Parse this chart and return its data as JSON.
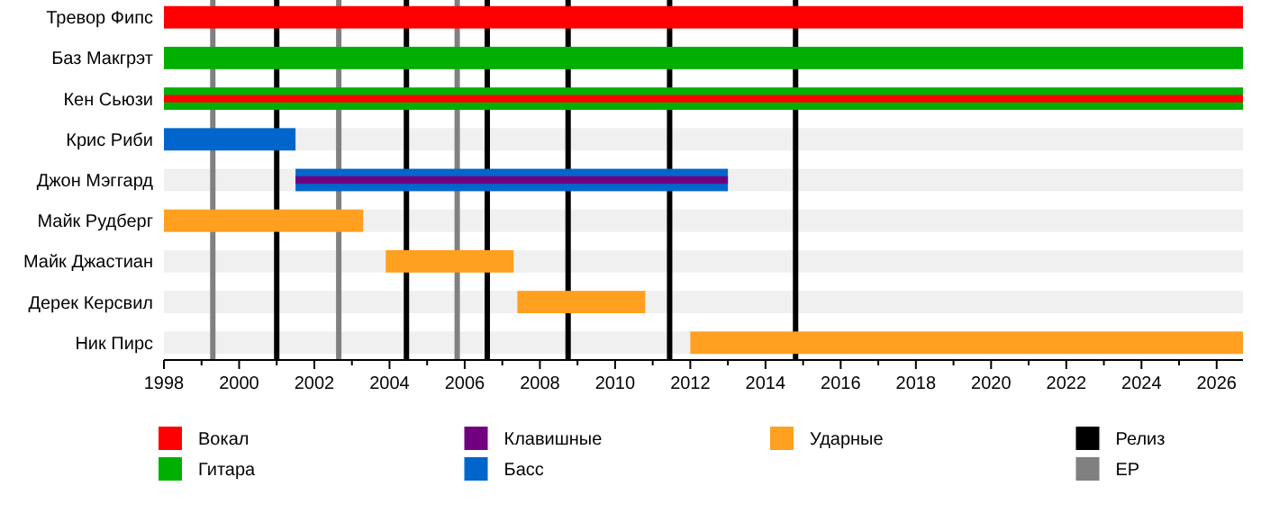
{
  "chart_data": {
    "type": "bar",
    "orientation": "horizontal",
    "categories": [
      "Тревор Фипс",
      "Баз Макгрэт",
      "Кен Сьюзи",
      "Крис Риби",
      "Джон Мэггард",
      "Майк Рудберг",
      "Майк Джастиан",
      "Дерек Керсвил",
      "Ник Пирс"
    ],
    "series": [
      {
        "name": "Вокал",
        "color": "#ff0000",
        "base": [
          1998,
          null,
          1998,
          null,
          null,
          null,
          null,
          null,
          null
        ],
        "values": [
          28.7,
          null,
          28.7,
          null,
          null,
          null,
          null,
          null,
          null
        ]
      },
      {
        "name": "Гитара",
        "color": "#00b000",
        "base": [
          null,
          1998,
          1998,
          null,
          null,
          null,
          null,
          null,
          null
        ],
        "values": [
          null,
          28.7,
          28.7,
          null,
          null,
          null,
          null,
          null,
          null
        ]
      },
      {
        "name": "Клавишные",
        "color": "#700080",
        "base": [
          null,
          null,
          null,
          null,
          2001.5,
          null,
          null,
          null,
          null
        ],
        "values": [
          null,
          null,
          null,
          null,
          11.5,
          null,
          null,
          null,
          null
        ]
      },
      {
        "name": "Басс",
        "color": "#0066cc",
        "base": [
          null,
          null,
          null,
          1998,
          2001.5,
          null,
          null,
          null,
          null
        ],
        "values": [
          null,
          null,
          null,
          3.5,
          11.5,
          null,
          null,
          null,
          null
        ]
      },
      {
        "name": "Ударные",
        "color": "#ffa020",
        "base": [
          null,
          null,
          null,
          null,
          null,
          1998,
          2003.9,
          2007.4,
          2012.0
        ],
        "values": [
          null,
          null,
          null,
          null,
          null,
          5.3,
          3.4,
          3.4,
          14.7
        ]
      }
    ],
    "ref_lines": [
      {
        "axis": "x",
        "value": 2001.0,
        "label": "Релиз",
        "color": "#000000"
      },
      {
        "axis": "x",
        "value": 2004.45,
        "color": "#000000"
      },
      {
        "axis": "x",
        "value": 2006.6,
        "color": "#000000"
      },
      {
        "axis": "x",
        "value": 2008.75,
        "color": "#000000"
      },
      {
        "axis": "x",
        "value": 2011.45,
        "color": "#000000"
      },
      {
        "axis": "x",
        "value": 2014.8,
        "color": "#000000"
      },
      {
        "axis": "x",
        "value": 1999.3,
        "label": "EP",
        "color": "#808080"
      },
      {
        "axis": "x",
        "value": 2002.65,
        "color": "#808080"
      },
      {
        "axis": "x",
        "value": 2005.8,
        "color": "#808080"
      }
    ],
    "xlim": [
      1998,
      2026.7
    ],
    "xticks": [
      1998,
      {
        "value": 1999,
        "label": null
      },
      2000,
      {
        "value": 2001,
        "label": null
      },
      2002,
      {
        "value": 2003,
        "label": null
      },
      2004,
      {
        "value": 2005,
        "label": null
      },
      2006,
      {
        "value": 2007,
        "label": null
      },
      2008,
      {
        "value": 2009,
        "label": null
      },
      2010,
      {
        "value": 2011,
        "label": null
      },
      2012,
      {
        "value": 2013,
        "label": null
      },
      2014,
      {
        "value": 2015,
        "label": null
      },
      2016,
      {
        "value": 2017,
        "label": null
      },
      2018,
      {
        "value": 2019,
        "label": null
      },
      2020,
      {
        "value": 2021,
        "label": null
      },
      2022,
      {
        "value": 2023,
        "label": null
      },
      2024,
      {
        "value": 2025,
        "label": null
      },
      2026
    ],
    "legend": "bottom"
  }
}
